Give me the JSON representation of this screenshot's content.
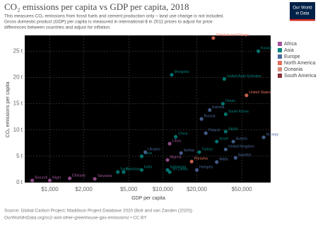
{
  "chart_data": {
    "type": "scatter",
    "title": "CO₂ emissions per capita vs GDP per capita, 2018",
    "subtitle": [
      "This measures CO₂ emissions from fossil fuels and cement production only – land use change is not included.",
      "Gross domestic product (GDP) per capita is measured in international-$ in 2011 prices to adjust for price",
      "differences between countries and adjust for inflation."
    ],
    "logo": [
      "Our World",
      "in Data"
    ],
    "x_label": "GDP per capita",
    "y_label": "CO₂ emissions per capita",
    "x_log": true,
    "grid": true,
    "legend": "right",
    "xlim": [
      600,
      90000
    ],
    "ylim": [
      0,
      28
    ],
    "xticks": [
      {
        "value": 1000,
        "label": "$1,000"
      },
      {
        "value": 2000,
        "label": "$2,000"
      },
      {
        "value": 5000,
        "label": "$5,000"
      },
      {
        "value": 10000,
        "label": "$10,000"
      },
      {
        "value": 20000,
        "label": "$20,000"
      },
      {
        "value": 50000,
        "label": "$50,000"
      }
    ],
    "yticks": [
      {
        "value": 0,
        "label": "0 t"
      },
      {
        "value": 5,
        "label": "5 t"
      },
      {
        "value": 10,
        "label": "10 t"
      },
      {
        "value": 15,
        "label": "15 t"
      },
      {
        "value": 20,
        "label": "20 t"
      },
      {
        "value": 25,
        "label": "25 t"
      }
    ],
    "series": [
      {
        "name": "Africa",
        "color": "#a2559c",
        "labels": [
          "Libya",
          "Algeria",
          "Ethiopia",
          "Tanzania",
          "Burundi",
          "Niger"
        ],
        "x": [
          11500,
          11000,
          1500,
          2500,
          700,
          1000
        ],
        "values": [
          7.4,
          4.3,
          0.8,
          0.7,
          0.4,
          0.4
        ]
      },
      {
        "name": "Asia",
        "color": "#00847e",
        "labels": [
          "Kuwait",
          "Mongolia",
          "United Arab Emirates",
          "China",
          "India",
          "Pakistan",
          "Sri Lanka",
          "Indonesia",
          "Laos",
          "Syria",
          "Israel",
          "Japan",
          "South Korea",
          "Oman",
          "Turkey"
        ],
        "x": [
          70000,
          12000,
          35000,
          13000,
          6500,
          4500,
          11500,
          11000,
          6500,
          4000,
          30000,
          36000,
          36000,
          34000,
          21000
        ],
        "values": [
          25,
          20.5,
          19.7,
          8.7,
          2.4,
          2,
          2,
          2.4,
          5,
          2,
          7.8,
          9.7,
          13,
          15,
          5.8
        ]
      },
      {
        "name": "Europe",
        "color": "#4c6a9c",
        "labels": [
          "Estonia",
          "Russia",
          "Poland",
          "Norway",
          "Austria",
          "United Kingdom",
          "Sweden",
          "Malta",
          "Ukraine",
          "Serbia",
          "Hungary"
        ],
        "x": [
          26000,
          22000,
          24000,
          78000,
          42000,
          36000,
          44000,
          30000,
          7000,
          14500,
          20000
        ],
        "values": [
          13.8,
          12.1,
          9.4,
          8.6,
          7.8,
          6.3,
          4.7,
          3.9,
          5.8,
          5.6,
          2.4
        ]
      },
      {
        "name": "North America",
        "color": "#e56e5a",
        "labels": [
          "Trinidad and Tobago",
          "United States",
          "Panama"
        ],
        "x": [
          28000,
          55000,
          18000
        ],
        "values": [
          27.5,
          16.6,
          4
        ]
      },
      {
        "name": "Oceania",
        "color": "#d68a7c",
        "labels": [],
        "x": [],
        "values": []
      },
      {
        "name": "South America",
        "color": "#883039",
        "labels": [],
        "x": [],
        "values": []
      }
    ],
    "source": "Source: Global Carbon Project; Maddison Project Database 2020 (Bolt and van Zanden (2020))",
    "url": "OurWorldInData.org/co2-and-other-greenhouse-gas-emissions/ • CC BY"
  }
}
